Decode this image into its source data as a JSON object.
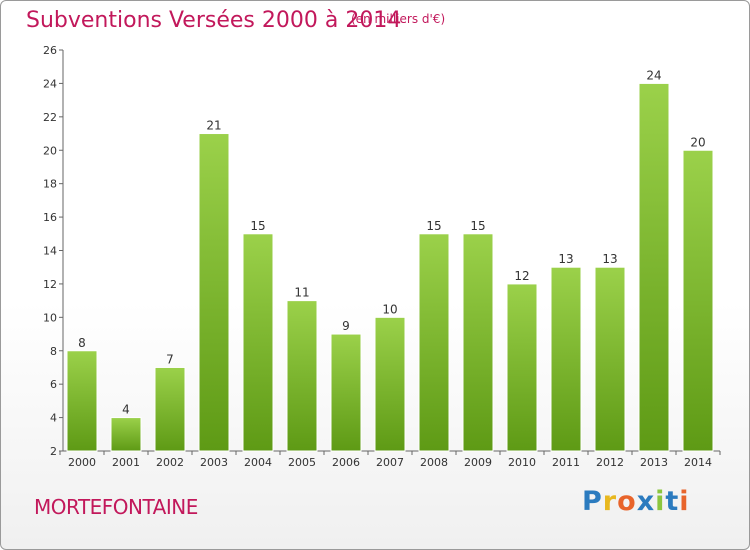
{
  "header": {
    "title": "Subventions Versées 2000 à 2014",
    "subtitle": "(en milliers d'€)"
  },
  "footer": {
    "commune": "MORTEFONTAINE",
    "logo_text": "Proxiti"
  },
  "colors": {
    "title": "#c2185b",
    "bar_top": "#9bd14a",
    "bar_bottom": "#5e9a15",
    "axis": "#555555"
  },
  "chart_data": {
    "type": "bar",
    "categories": [
      "2000",
      "2001",
      "2002",
      "2003",
      "2004",
      "2005",
      "2006",
      "2007",
      "2008",
      "2009",
      "2010",
      "2011",
      "2012",
      "2013",
      "2014"
    ],
    "values": [
      8,
      4,
      7,
      21,
      15,
      11,
      9,
      10,
      15,
      15,
      12,
      13,
      13,
      24,
      20
    ],
    "ylim": [
      2,
      26
    ],
    "yticks": [
      2,
      4,
      6,
      8,
      10,
      12,
      14,
      16,
      18,
      20,
      22,
      24,
      26
    ],
    "title": "Subventions Versées 2000 à 2014",
    "xlabel": "",
    "ylabel": "",
    "grid": false,
    "data_labels": true
  }
}
